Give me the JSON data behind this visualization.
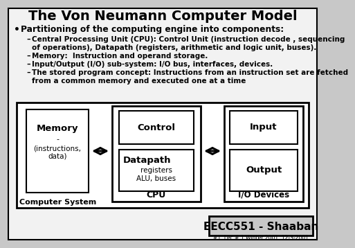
{
  "title": "The Von Neumann Computer Model",
  "bullet_main": "Partitioning of the computing engine into components:",
  "bullets": [
    "Central Processing Unit (CPU): Control Unit (instruction decode , sequencing\nof operations), Datapath (registers, arithmetic and logic unit, buses).",
    "Memory:  Instruction and operand storage.",
    "Input/Output (I/O) sub-system: I/O bus, interfaces, devices.",
    "The stored program concept: Instructions from an instruction set are fetched\nfrom a common memory and executed one at a time"
  ],
  "bg_color": "#c8c8c8",
  "slide_bg": "#f2f2f2",
  "box_bg": "#ffffff",
  "text_color": "#000000",
  "footer_text": "EECC551 - Shaaban",
  "footer_sub": "#1  Lec # 1 Winter 2001  12-3-2001",
  "diagram_labels": {
    "memory": "Memory",
    "memory_dash": "-",
    "memory_sub": "(instructions,\ndata)",
    "control": "Control",
    "datapath": "Datapath",
    "datapath_sub": "registers\nALU, buses",
    "cpu": "CPU",
    "input": "Input",
    "output": "Output",
    "io_devices": "I/O Devices",
    "computer_system": "Computer System"
  }
}
